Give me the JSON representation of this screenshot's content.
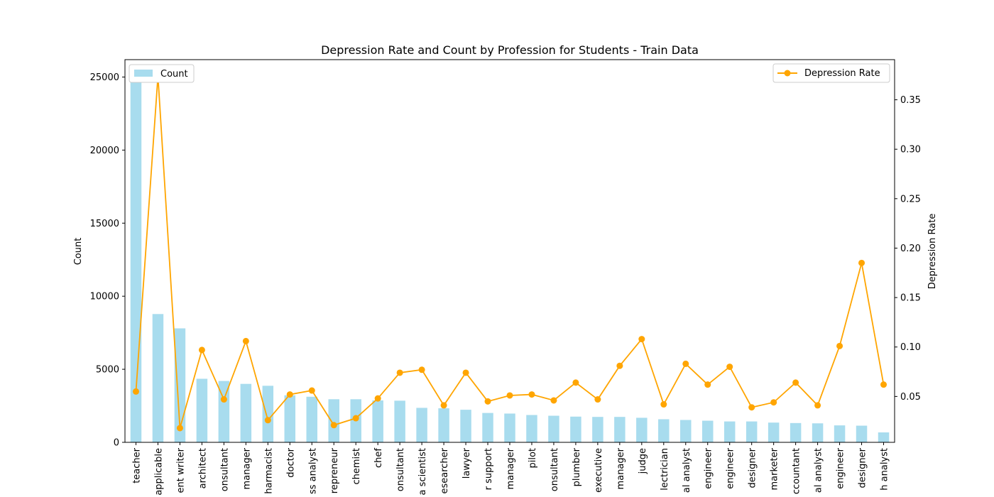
{
  "chart_data": {
    "type": "bar",
    "title": "Depression Rate and Count by Profession for Students - Train Data",
    "categories": [
      "teacher",
      "applicable",
      "ent writer",
      "architect",
      "onsultant",
      "manager",
      "harmacist",
      "doctor",
      "ss analyst",
      "repreneur",
      "chemist",
      "chef",
      "onsultant",
      "a scientist",
      "esearcher",
      "lawyer",
      "r support",
      "manager",
      "pilot",
      "onsultant",
      "plumber",
      "executive",
      "manager",
      "judge",
      "lectrician",
      "al analyst",
      "engineer",
      "engineer",
      "designer",
      "marketer",
      "ccountant",
      "al analyst",
      "engineer",
      "designer",
      "h analyst"
    ],
    "series": [
      {
        "name": "Count",
        "type": "bar",
        "axis": "left",
        "color": "#a8dcee",
        "values": [
          24900,
          8780,
          7800,
          4350,
          4200,
          4000,
          3870,
          3220,
          3120,
          2950,
          2950,
          2870,
          2850,
          2360,
          2330,
          2230,
          2010,
          1970,
          1870,
          1820,
          1760,
          1740,
          1740,
          1680,
          1580,
          1530,
          1480,
          1430,
          1430,
          1350,
          1320,
          1300,
          1160,
          1140,
          680
        ]
      },
      {
        "name": "Depression Rate",
        "type": "line",
        "axis": "right",
        "color": "#ffa500",
        "values": [
          0.055,
          0.374,
          0.018,
          0.097,
          0.047,
          0.106,
          0.026,
          0.052,
          0.056,
          0.021,
          0.028,
          0.048,
          0.074,
          0.077,
          0.041,
          0.074,
          0.045,
          0.051,
          0.052,
          0.046,
          0.064,
          0.047,
          0.081,
          0.108,
          0.042,
          0.083,
          0.062,
          0.08,
          0.039,
          0.044,
          0.064,
          0.041,
          0.101,
          0.185,
          0.062
        ]
      }
    ],
    "ylabel": "Count",
    "ylabel_right": "Depression Rate",
    "ylim": [
      0,
      26190
    ],
    "ylim_right": [
      0.0036,
      0.3906
    ],
    "yticks": [
      0,
      5000,
      10000,
      15000,
      20000,
      25000
    ],
    "yticks_right": [
      0.05,
      0.1,
      0.15,
      0.2,
      0.25,
      0.3,
      0.35
    ],
    "grid": false,
    "legend_left": "top-left",
    "legend_right": "top-right"
  }
}
